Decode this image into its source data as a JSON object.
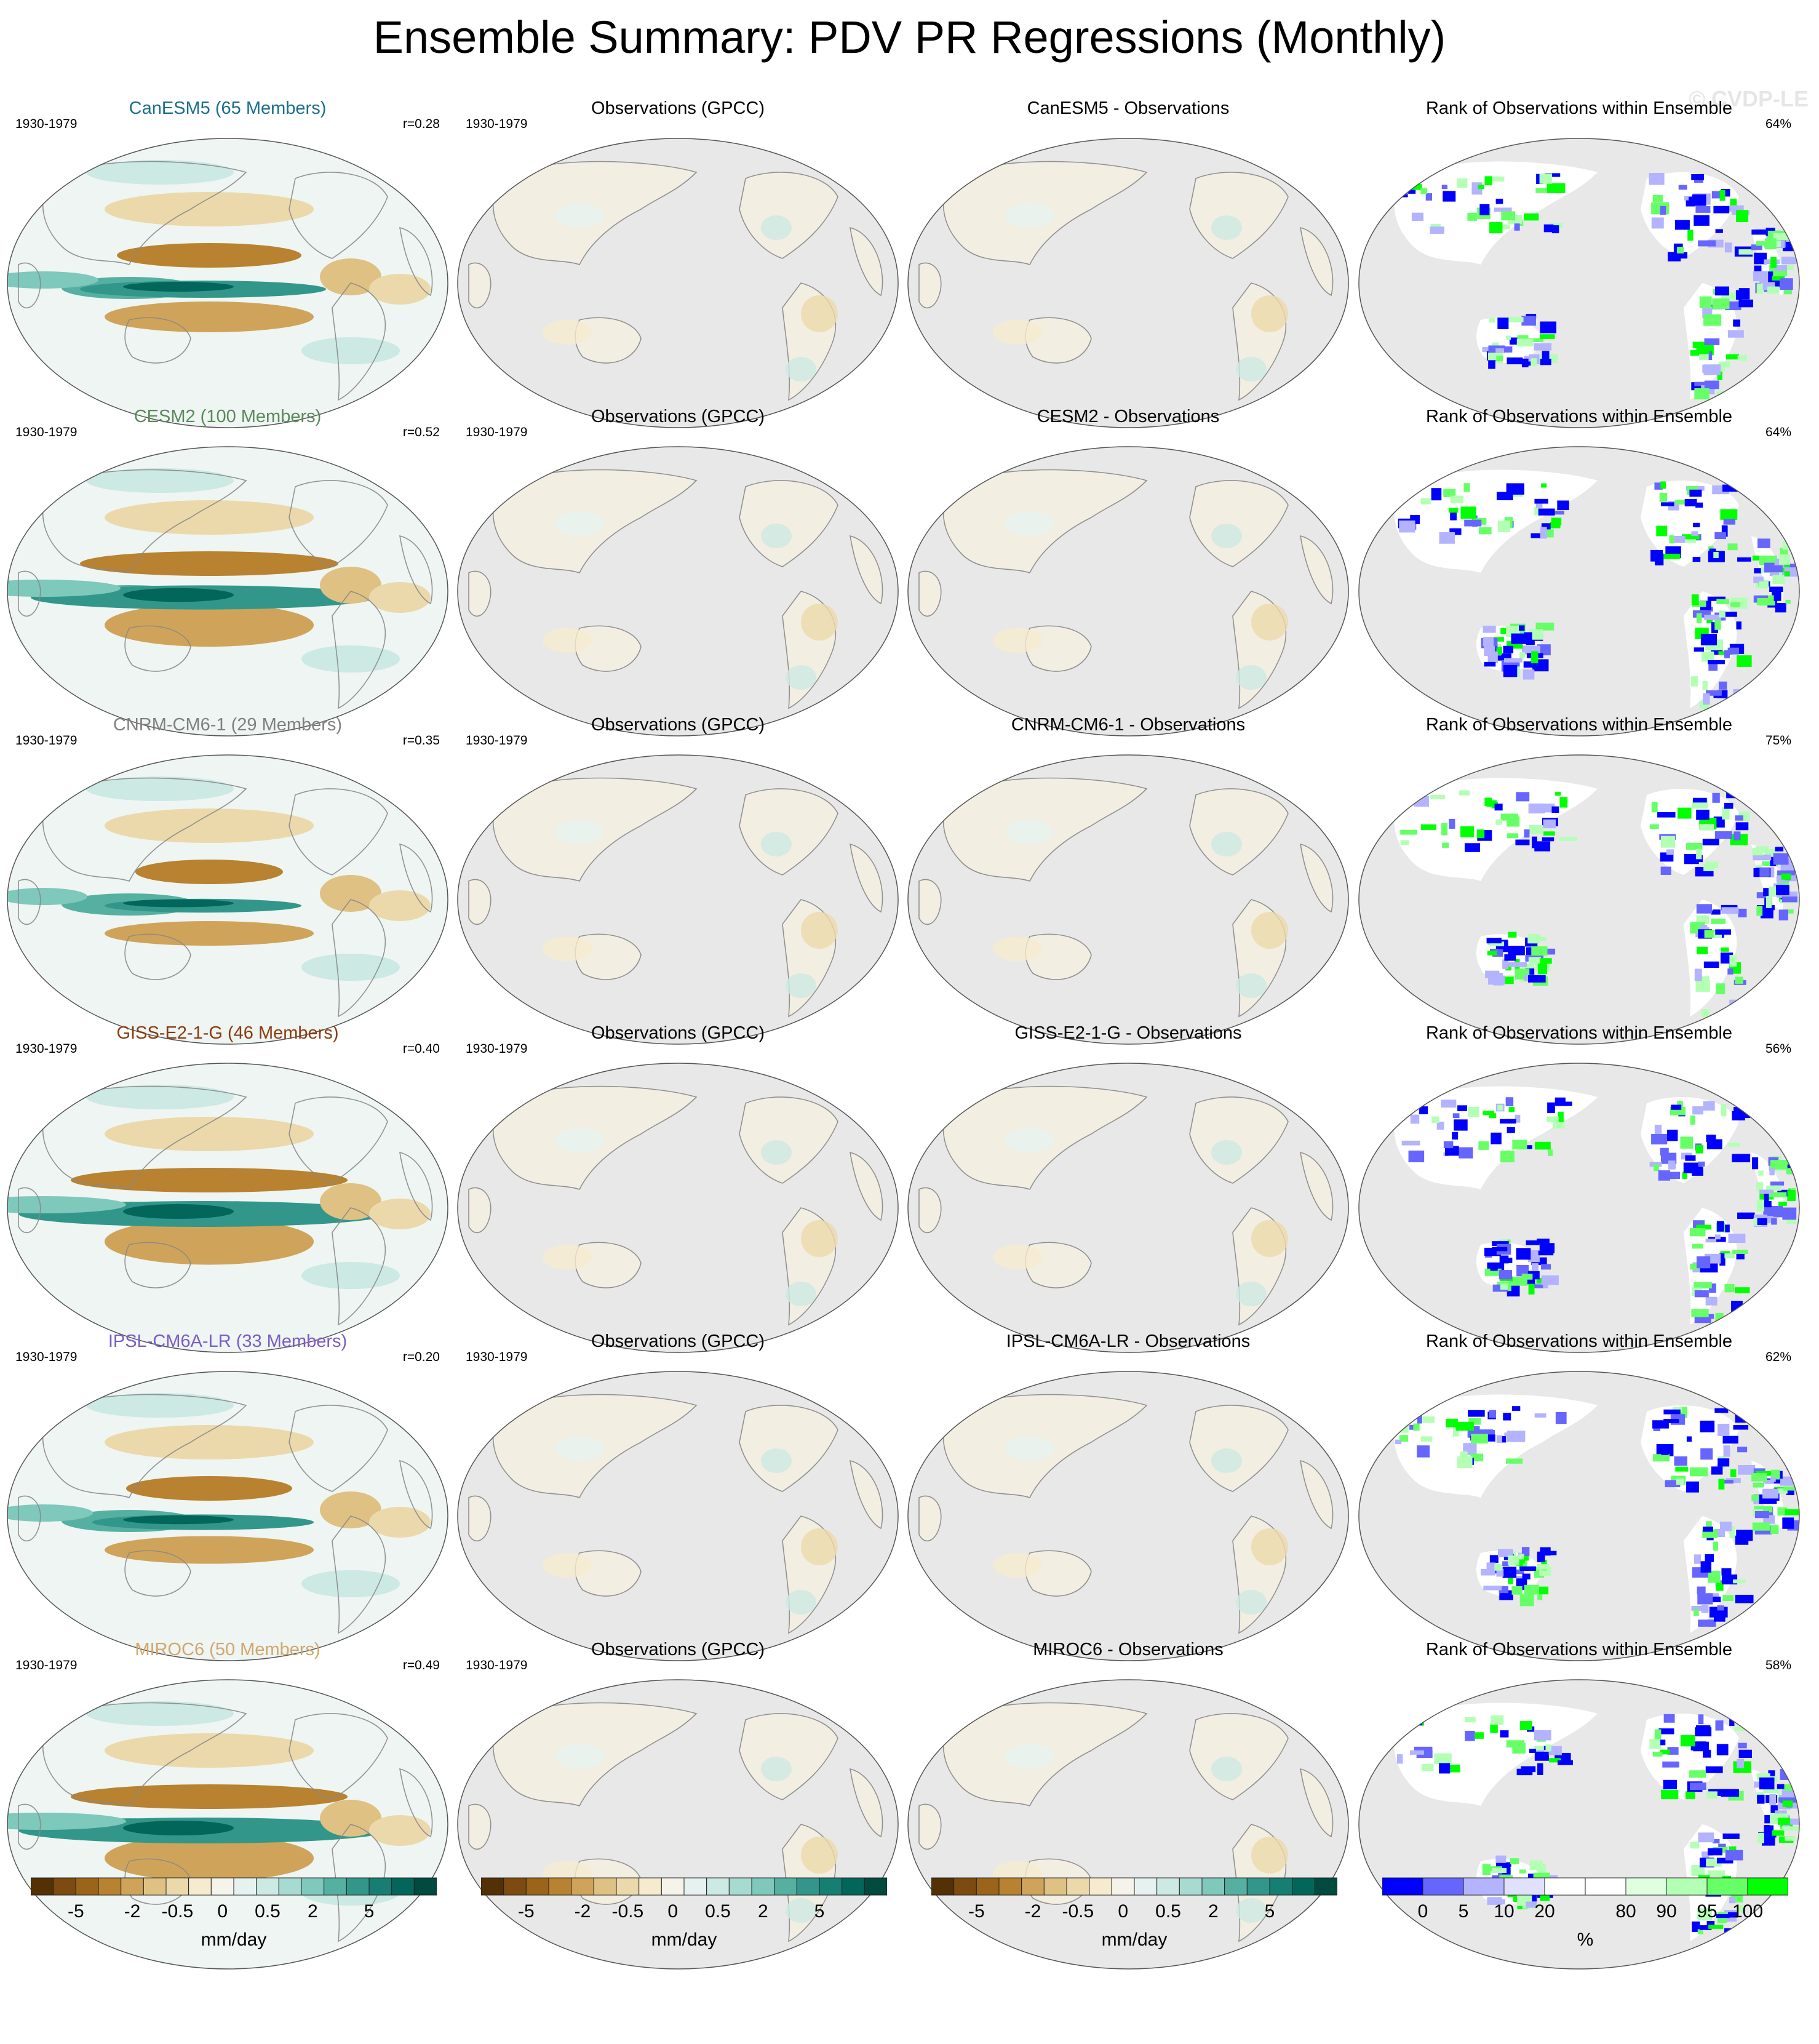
{
  "title": "Ensemble Summary: PDV PR Regressions (Monthly)",
  "watermark": "© CVDP-LE",
  "colors": {
    "pr_scale": [
      "#543005",
      "#7d4a10",
      "#9c6418",
      "#b88230",
      "#cfa45a",
      "#dfc184",
      "#ecd9ab",
      "#f6ebcf",
      "#f5f3ea",
      "#e6f2f0",
      "#cce9e4",
      "#a7dad1",
      "#7ec8bc",
      "#55b0a2",
      "#32978a",
      "#167e72",
      "#03665b",
      "#004a40"
    ],
    "rank_scale": [
      "#0000ff",
      "#6666ff",
      "#b3b3ff",
      "#e0e0ff",
      "#ffffff",
      "#ffffff",
      "#e0ffe0",
      "#b3ffb3",
      "#66ff66",
      "#00ff00"
    ],
    "land": "#e8e8e8",
    "coast": "#888888"
  },
  "rows": [
    {
      "model_title": "CanESM5 (65 Members)",
      "model_color": "#1a6e8a",
      "period": "1930-1979",
      "r": "r=0.28",
      "obs_title": "Observations (GPCC)",
      "obs_period": "1930-1979",
      "diff_title": "CanESM5 - Observations",
      "rank_title": "Rank of Observations within Ensemble",
      "rank_pct": "64%",
      "amp": 1.0
    },
    {
      "model_title": "CESM2 (100 Members)",
      "model_color": "#5a8a5a",
      "period": "1930-1979",
      "r": "r=0.52",
      "obs_title": "Observations (GPCC)",
      "obs_period": "1930-1979",
      "diff_title": "CESM2 - Observations",
      "rank_title": "Rank of Observations within Ensemble",
      "rank_pct": "64%",
      "amp": 1.4
    },
    {
      "model_title": "CNRM-CM6-1 (29 Members)",
      "model_color": "#808080",
      "period": "1930-1979",
      "r": "r=0.35",
      "obs_title": "Observations (GPCC)",
      "obs_period": "1930-1979",
      "diff_title": "CNRM-CM6-1 - Observations",
      "rank_title": "Rank of Observations within Ensemble",
      "rank_pct": "75%",
      "amp": 0.8
    },
    {
      "model_title": "GISS-E2-1-G (46 Members)",
      "model_color": "#8b3a0f",
      "period": "1930-1979",
      "r": "r=0.40",
      "obs_title": "Observations (GPCC)",
      "obs_period": "1930-1979",
      "diff_title": "GISS-E2-1-G - Observations",
      "rank_title": "Rank of Observations within Ensemble",
      "rank_pct": "56%",
      "amp": 1.5
    },
    {
      "model_title": "IPSL-CM6A-LR (33 Members)",
      "model_color": "#7b5cc7",
      "period": "1930-1979",
      "r": "r=0.20",
      "obs_title": "Observations (GPCC)",
      "obs_period": "1930-1979",
      "diff_title": "IPSL-CM6A-LR - Observations",
      "rank_title": "Rank of Observations within Ensemble",
      "rank_pct": "62%",
      "amp": 0.9
    },
    {
      "model_title": "MIROC6 (50 Members)",
      "model_color": "#d2a66e",
      "period": "1930-1979",
      "r": "r=0.49",
      "obs_title": "Observations (GPCC)",
      "obs_period": "1930-1979",
      "diff_title": "MIROC6 - Observations",
      "rank_title": "Rank of Observations within Ensemble",
      "rank_pct": "58%",
      "amp": 1.5
    }
  ],
  "colorbars": [
    {
      "ticks": [
        "-5",
        "-2",
        "-0.5",
        "0",
        "0.5",
        "2",
        "5"
      ],
      "unit": "mm/day"
    },
    {
      "ticks": [
        "-5",
        "-2",
        "-0.5",
        "0",
        "0.5",
        "2",
        "5"
      ],
      "unit": "mm/day"
    },
    {
      "ticks": [
        "-5",
        "-2",
        "-0.5",
        "0",
        "0.5",
        "2",
        "5"
      ],
      "unit": "mm/day"
    },
    {
      "ticks": [
        "0",
        "5",
        "10",
        "20",
        "80",
        "90",
        "95",
        "100"
      ],
      "unit": "%"
    }
  ]
}
